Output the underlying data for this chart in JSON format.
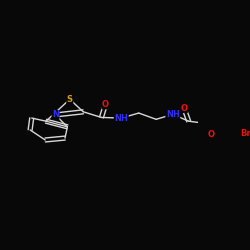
{
  "background_color": "#080808",
  "bond_color": "#d8d8d8",
  "atom_colors": {
    "S": "#d4a017",
    "N": "#3030ee",
    "O": "#ee1010",
    "Br": "#ee1010",
    "C": "#d8d8d8"
  },
  "bond_lw": 1.0,
  "font_size_atoms": 6.0,
  "xlim": [
    0.0,
    1.0
  ],
  "ylim": [
    0.35,
    0.7
  ]
}
